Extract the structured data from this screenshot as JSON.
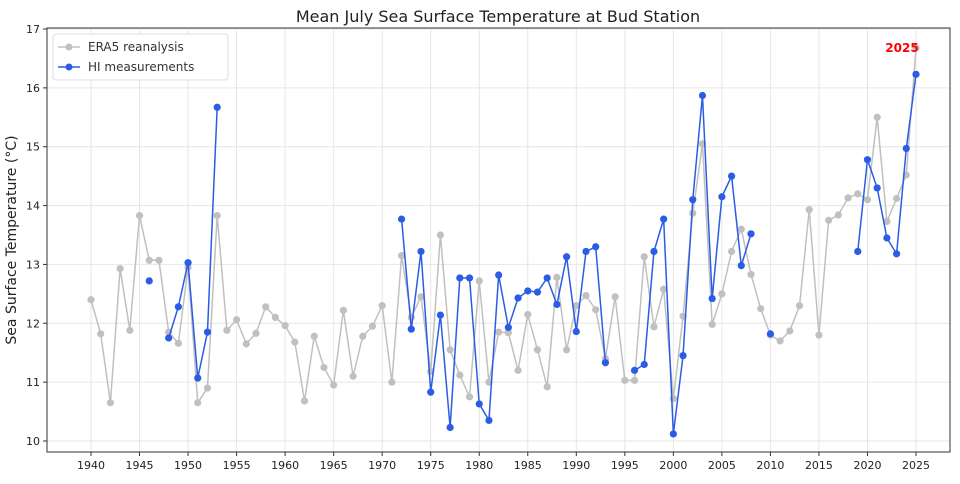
{
  "chart_data": {
    "type": "line",
    "title": "Mean July Sea Surface Temperature at Bud Station",
    "xlabel": "",
    "ylabel": "Sea Surface Temperature (°C)",
    "xlim": [
      1936.5,
      2029.5
    ],
    "ylim": [
      10,
      17
    ],
    "xticks": [
      1940,
      1945,
      1950,
      1955,
      1960,
      1965,
      1970,
      1975,
      1980,
      1985,
      1990,
      1995,
      2000,
      2005,
      2010,
      2015,
      2020,
      2025
    ],
    "yticks": [
      10,
      11,
      12,
      13,
      14,
      15,
      16,
      17
    ],
    "grid": true,
    "legend_position": "top-left",
    "annotation": {
      "text": "2025",
      "x": 2025,
      "y": 16.68,
      "color": "#ff0000"
    },
    "series": [
      {
        "name": "ERA5 reanalysis",
        "color": "#c0c0c0",
        "x_start": 1940,
        "values": [
          12.4,
          11.82,
          10.65,
          12.93,
          11.88,
          13.83,
          13.07,
          13.07,
          11.85,
          11.66,
          12.95,
          10.65,
          10.9,
          13.83,
          11.88,
          12.06,
          11.65,
          11.83,
          12.28,
          12.1,
          11.96,
          11.68,
          10.68,
          11.78,
          11.25,
          10.95,
          12.22,
          11.1,
          11.78,
          11.95,
          12.3,
          11.0,
          13.15,
          12.1,
          12.45,
          11.18,
          13.5,
          11.55,
          11.12,
          10.75,
          12.72,
          11.0,
          11.85,
          11.84,
          11.2,
          12.15,
          11.55,
          10.92,
          12.78,
          11.55,
          12.3,
          12.47,
          12.23,
          11.4,
          12.45,
          11.03,
          11.03,
          13.13,
          11.94,
          12.58,
          10.72,
          12.12,
          13.87,
          15.05,
          11.98,
          12.5,
          13.22,
          13.6,
          12.83,
          12.25,
          11.8,
          11.7,
          11.87,
          12.3,
          13.93,
          11.8,
          13.75,
          13.84,
          14.13,
          14.2,
          14.1,
          15.5,
          13.73,
          14.12,
          14.52,
          16.68
        ]
      },
      {
        "name": "HI measurements",
        "color": "#2b5ce6",
        "x_start": 1946,
        "values": [
          12.72,
          null,
          11.75,
          12.28,
          13.03,
          11.07,
          11.85,
          15.67,
          null,
          null,
          null,
          null,
          null,
          null,
          null,
          null,
          null,
          null,
          null,
          null,
          null,
          null,
          null,
          null,
          null,
          null,
          13.77,
          11.9,
          13.22,
          10.83,
          12.14,
          10.23,
          12.77,
          12.77,
          10.63,
          10.35,
          12.82,
          11.93,
          12.43,
          12.55,
          12.53,
          12.77,
          12.32,
          13.13,
          11.86,
          13.22,
          13.3,
          11.33,
          null,
          null,
          11.2,
          11.3,
          13.22,
          13.77,
          10.12,
          11.45,
          14.1,
          15.87,
          12.42,
          14.15,
          14.5,
          12.98,
          13.52,
          null,
          11.82,
          null,
          null,
          null,
          null,
          null,
          null,
          null,
          null,
          13.22,
          14.78,
          14.3,
          13.45,
          13.18,
          14.97,
          16.23
        ]
      }
    ]
  }
}
